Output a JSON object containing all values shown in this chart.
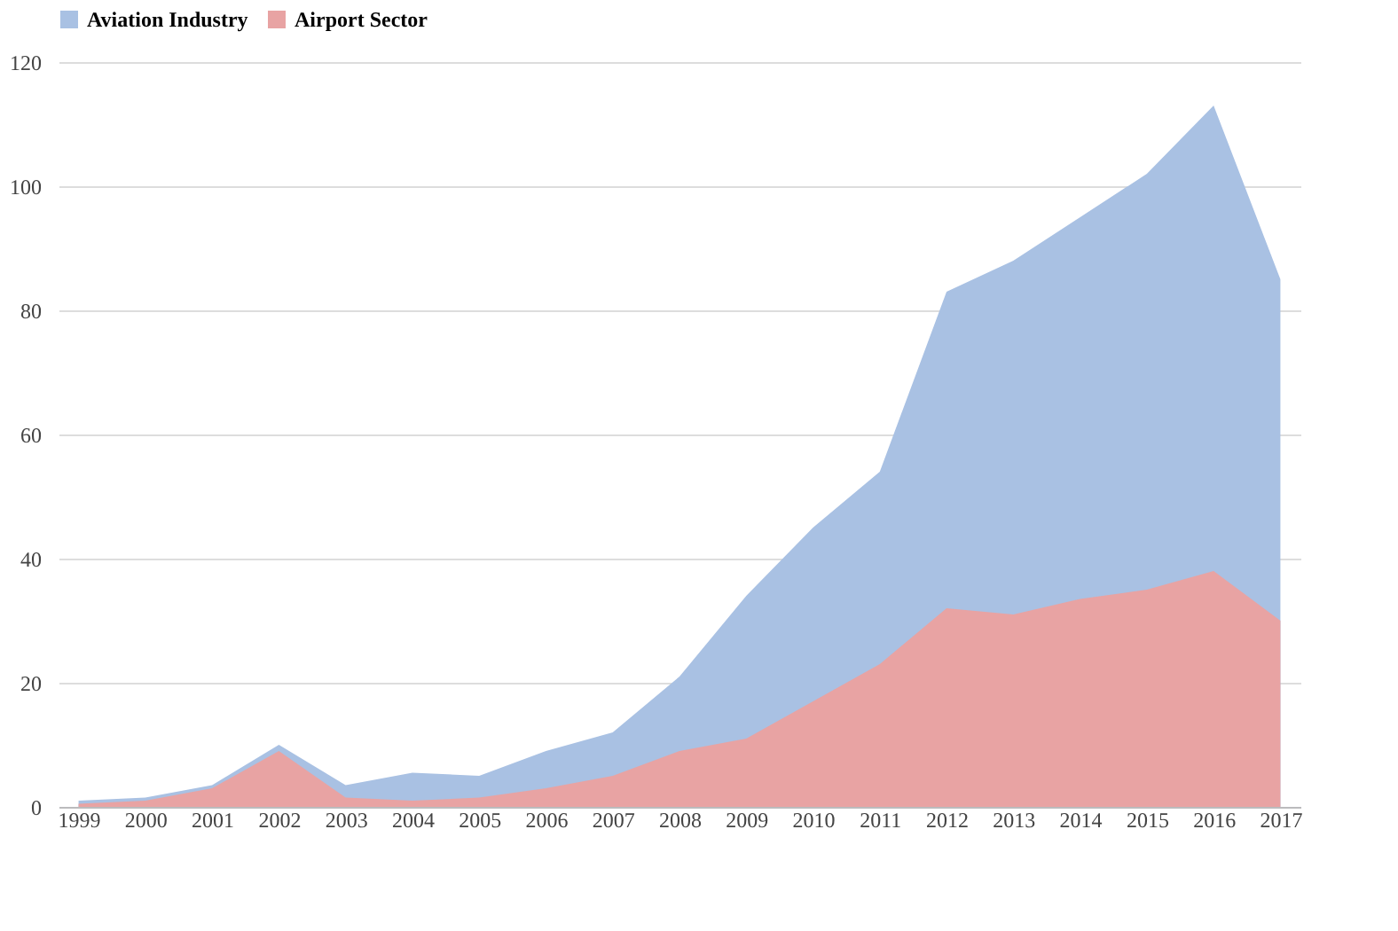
{
  "chart_data": {
    "type": "area",
    "categories": [
      "1999",
      "2000",
      "2001",
      "2002",
      "2003",
      "2004",
      "2005",
      "2006",
      "2007",
      "2008",
      "2009",
      "2010",
      "2011",
      "2012",
      "2013",
      "2014",
      "2015",
      "2016",
      "2017"
    ],
    "series": [
      {
        "name": "Aviation Industry",
        "color": "#a9c1e3",
        "values": [
          1,
          1.5,
          3.5,
          10,
          3.5,
          5.5,
          5,
          9,
          12,
          21,
          34,
          45,
          54,
          83,
          88,
          95,
          102,
          113,
          85
        ]
      },
      {
        "name": "Airport Sector",
        "color": "#e8a3a3",
        "values": [
          0.5,
          1,
          3,
          9,
          1.5,
          1,
          1.5,
          3,
          5,
          9,
          11,
          17,
          23,
          32,
          31,
          33.5,
          35,
          38,
          30
        ]
      }
    ],
    "ylim": [
      0,
      120
    ],
    "yticks": [
      0,
      20,
      40,
      60,
      80,
      100,
      120
    ],
    "grid": "y",
    "legend": "top"
  }
}
